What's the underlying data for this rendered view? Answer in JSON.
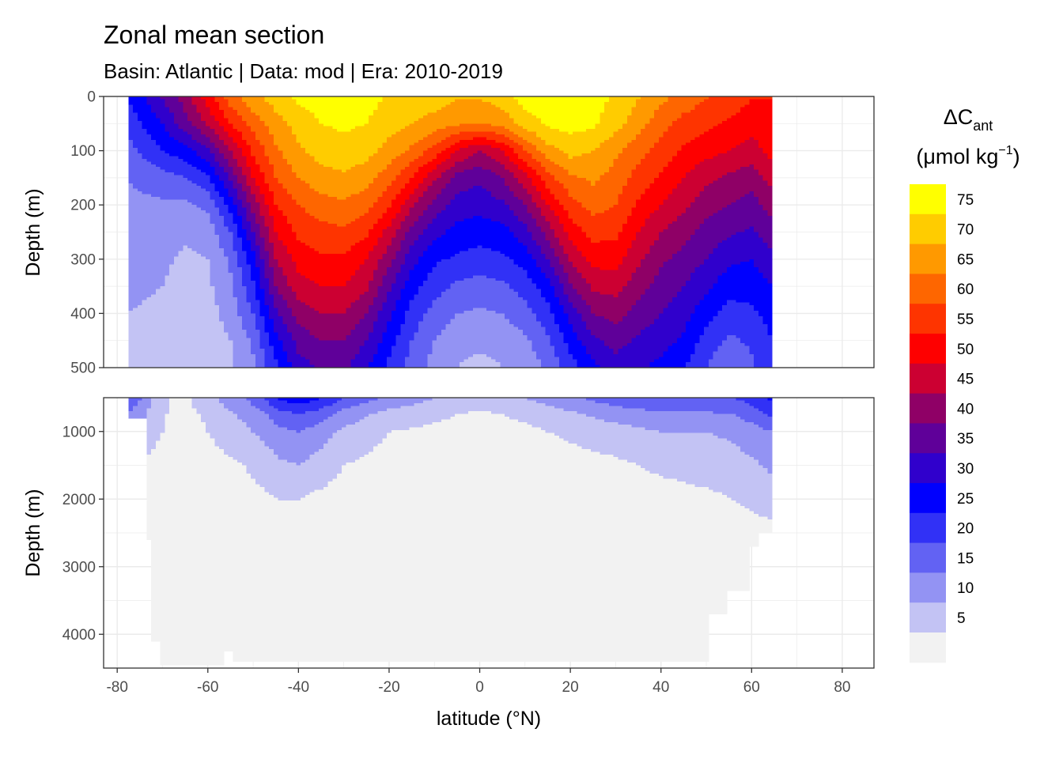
{
  "chart_data": {
    "type": "heatmap",
    "subtype": "filled-contour",
    "title": "Zonal mean section",
    "subtitle": "Basin: Atlantic | Data: mod | Era: 2010-2019",
    "xlabel": "latitude (°N)",
    "ylabel": "Depth (m)",
    "xlim": [
      -83,
      87
    ],
    "x_ticks": [
      -80,
      -60,
      -40,
      -20,
      0,
      20,
      40,
      60,
      80
    ],
    "grid": true,
    "facets": [
      {
        "name": "upper",
        "ylim": [
          0,
          500
        ],
        "y_reversed": true,
        "y_ticks": [
          0,
          100,
          200,
          300,
          400,
          500
        ],
        "ylabel": "Depth (m)"
      },
      {
        "name": "lower",
        "ylim": [
          500,
          4500
        ],
        "y_reversed": true,
        "y_ticks": [
          1000,
          2000,
          3000,
          4000
        ],
        "ylabel": "Depth (m)"
      }
    ],
    "legend": {
      "title": "ΔC",
      "title_subscript": "ant",
      "units": "(μmol kg",
      "units_superscript": "−1",
      "units_close": ")",
      "position": "right",
      "levels": [
        "5",
        "10",
        "15",
        "20",
        "25",
        "30",
        "35",
        "40",
        "45",
        "50",
        "55",
        "60",
        "65",
        "70",
        "75"
      ],
      "colors": [
        "#f2f2f2",
        "#c3c3f4",
        "#9393f3",
        "#6262f3",
        "#3131f6",
        "#0000fe",
        "#3000cc",
        "#5f0099",
        "#8f0066",
        "#cc0032",
        "#fe0000",
        "#fe3400",
        "#fe6600",
        "#ff9900",
        "#ffcc00",
        "#ffff00"
      ]
    },
    "data_extent_lat": [
      -77.5,
      64.5
    ],
    "upper_section": {
      "bins": [
        0,
        5,
        10,
        15,
        20,
        25,
        30,
        35,
        40,
        45,
        50,
        55,
        60,
        65,
        70,
        75
      ],
      "note_levels": "top-of-bin lower bounds of deltaC_ant bands",
      "lat": [
        -77.5,
        -70,
        -65,
        -60,
        -55,
        -50,
        -45,
        -40,
        -35,
        -30,
        -25,
        -20,
        -15,
        -10,
        -5,
        0,
        5,
        10,
        15,
        20,
        25,
        30,
        35,
        40,
        45,
        50,
        55,
        60,
        64.5
      ],
      "depth": [
        5,
        50,
        100,
        150,
        200,
        250,
        300,
        350,
        400,
        450,
        495
      ],
      "values": [
        [
          25,
          35,
          42,
          52,
          62,
          68,
          72,
          76,
          77,
          78,
          77,
          74,
          73,
          72,
          70,
          70,
          72,
          77,
          78,
          78,
          77,
          74,
          70,
          66,
          63,
          60,
          58,
          55,
          55
        ],
        [
          22,
          30,
          38,
          46,
          55,
          62,
          68,
          72,
          75,
          76,
          75,
          72,
          70,
          68,
          66,
          65,
          67,
          72,
          76,
          77,
          76,
          72,
          67,
          62,
          58,
          56,
          54,
          52,
          52
        ],
        [
          18,
          25,
          28,
          34,
          45,
          56,
          64,
          69,
          72,
          73,
          72,
          68,
          64,
          58,
          50,
          45,
          50,
          60,
          68,
          72,
          70,
          66,
          62,
          58,
          54,
          52,
          50,
          48,
          52
        ],
        [
          15,
          18,
          20,
          24,
          36,
          50,
          60,
          65,
          68,
          69,
          67,
          62,
          55,
          46,
          38,
          36,
          40,
          48,
          58,
          64,
          66,
          63,
          58,
          54,
          50,
          46,
          44,
          42,
          47
        ],
        [
          14,
          14,
          14,
          16,
          27,
          42,
          55,
          60,
          63,
          64,
          62,
          56,
          46,
          38,
          33,
          32,
          34,
          40,
          50,
          58,
          62,
          60,
          54,
          50,
          46,
          42,
          40,
          38,
          42
        ],
        [
          13,
          12,
          11,
          12,
          20,
          35,
          50,
          56,
          58,
          59,
          56,
          48,
          38,
          32,
          28,
          27,
          28,
          33,
          42,
          52,
          57,
          56,
          50,
          45,
          42,
          38,
          36,
          34,
          38
        ],
        [
          12,
          11,
          9,
          10,
          16,
          28,
          45,
          52,
          54,
          54,
          50,
          42,
          32,
          26,
          24,
          23,
          24,
          27,
          35,
          46,
          52,
          52,
          46,
          41,
          38,
          35,
          31,
          30,
          34
        ],
        [
          11,
          10,
          8,
          9,
          14,
          24,
          40,
          48,
          50,
          50,
          46,
          36,
          27,
          22,
          19,
          18,
          19,
          22,
          28,
          39,
          46,
          47,
          42,
          38,
          35,
          31,
          27,
          27,
          30
        ],
        [
          10,
          9,
          8,
          8,
          12,
          20,
          34,
          42,
          45,
          45,
          40,
          31,
          23,
          18,
          15,
          14,
          15,
          18,
          23,
          32,
          40,
          42,
          38,
          35,
          32,
          27,
          23,
          24,
          27
        ],
        [
          9,
          8,
          7,
          7,
          10,
          16,
          28,
          37,
          40,
          40,
          35,
          27,
          20,
          15,
          12,
          11,
          12,
          14,
          19,
          27,
          34,
          37,
          34,
          32,
          29,
          23,
          19,
          21,
          25
        ],
        [
          8,
          7,
          6,
          6,
          9,
          14,
          24,
          33,
          36,
          36,
          31,
          24,
          18,
          13,
          10,
          9,
          10,
          12,
          16,
          23,
          29,
          33,
          31,
          29,
          26,
          20,
          16,
          19,
          24
        ]
      ]
    },
    "lower_section": {
      "lat": [
        -77.5,
        -72,
        -68,
        -64,
        -60,
        -56,
        -52,
        -48,
        -44,
        -40,
        -36,
        -30,
        -20,
        -10,
        0,
        10,
        20,
        30,
        40,
        50,
        56,
        60,
        64.5
      ],
      "depth": [
        500,
        750,
        1000,
        1500,
        2000,
        2500
      ],
      "values": [
        [
          20,
          10,
          5,
          5,
          8,
          12,
          14,
          20,
          26,
          28,
          26,
          20,
          14,
          10,
          8,
          10,
          14,
          18,
          20,
          20,
          20,
          22,
          26
        ],
        [
          15,
          8,
          4,
          4,
          6,
          9,
          11,
          14,
          18,
          20,
          18,
          13,
          8,
          6,
          4,
          6,
          9,
          12,
          14,
          14,
          15,
          17,
          21
        ],
        [
          10,
          6,
          4,
          3,
          5,
          7,
          9,
          11,
          14,
          15,
          13,
          9,
          5,
          4,
          3,
          4,
          6,
          8,
          10,
          10,
          11,
          13,
          15
        ],
        [
          5,
          4,
          3,
          3,
          3,
          4,
          5,
          7,
          9,
          10,
          8,
          5,
          3,
          2,
          2,
          2,
          3,
          4,
          6,
          7,
          8,
          9,
          11
        ],
        [
          3,
          3,
          2,
          2,
          2,
          3,
          3,
          4,
          5,
          5,
          4,
          3,
          2,
          1,
          1,
          1,
          2,
          2,
          3,
          4,
          5,
          6,
          7
        ],
        [
          2,
          2,
          1,
          1,
          1,
          2,
          2,
          2,
          3,
          3,
          2,
          2,
          1,
          1,
          1,
          1,
          1,
          1,
          2,
          2,
          3,
          3,
          4
        ]
      ]
    }
  }
}
